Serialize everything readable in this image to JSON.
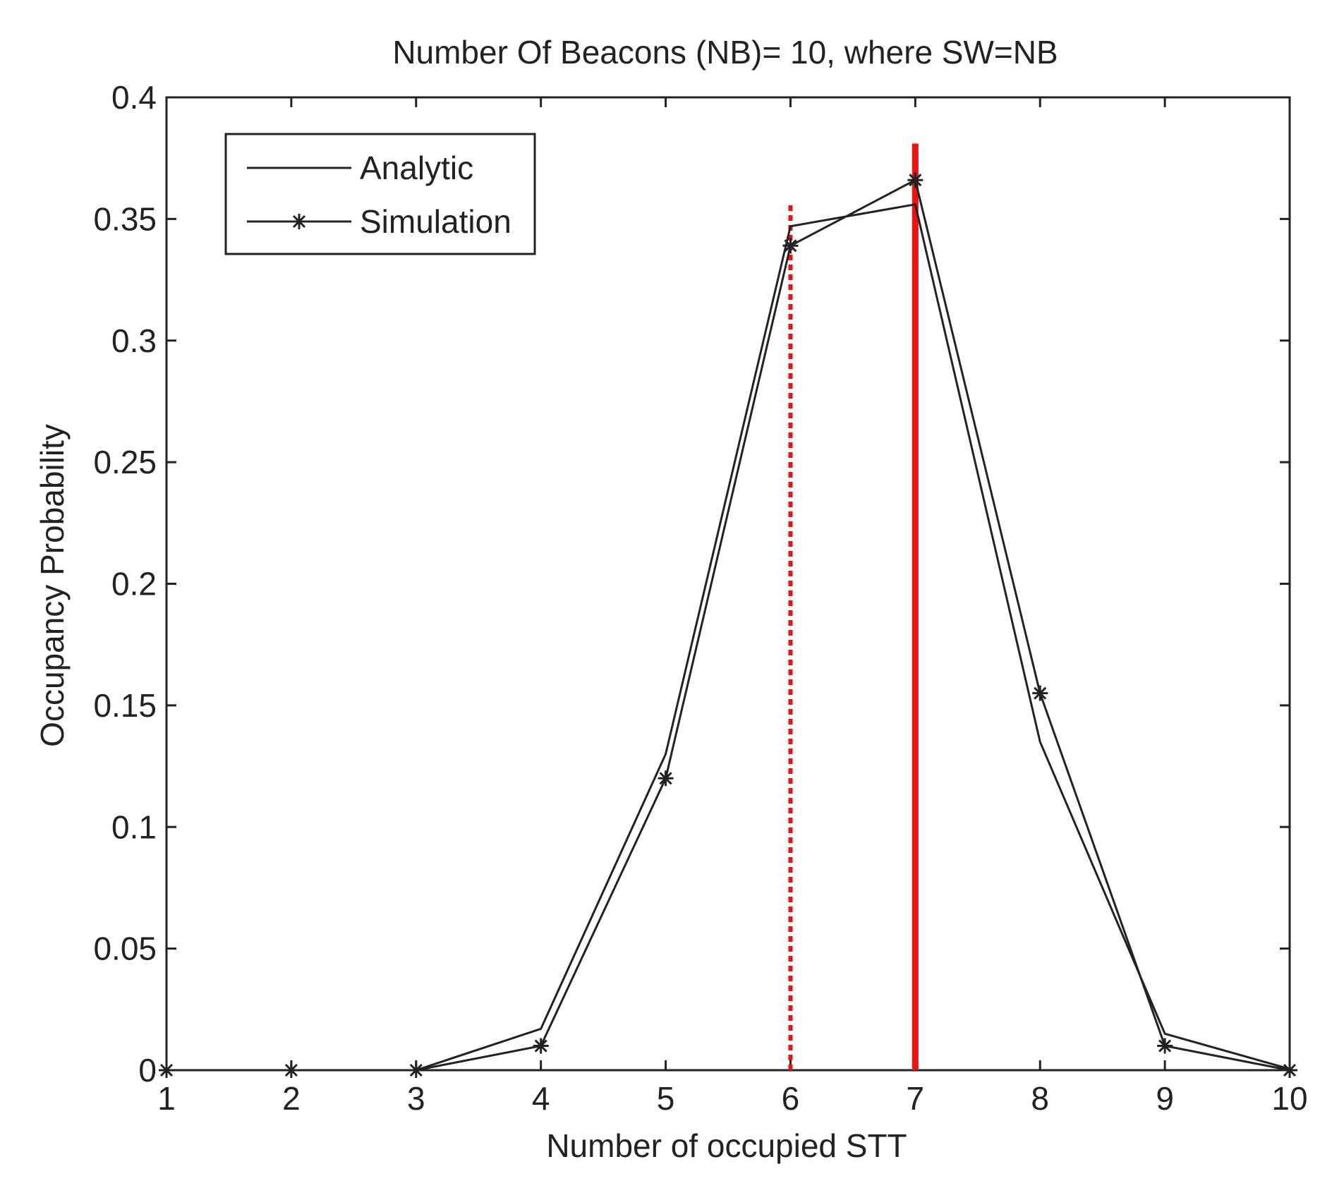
{
  "chart_data": {
    "type": "line",
    "title": "Number Of Beacons (NB)= 10, where SW=NB",
    "xlabel": "Number of occupied STT",
    "ylabel": "Occupancy Probability",
    "xlim": [
      1,
      10
    ],
    "ylim": [
      0,
      0.4
    ],
    "xticks": [
      "1",
      "2",
      "3",
      "4",
      "5",
      "6",
      "7",
      "8",
      "9",
      "10"
    ],
    "yticks": [
      "0",
      "0.05",
      "0.1",
      "0.15",
      "0.2",
      "0.25",
      "0.3",
      "0.35",
      "0.4"
    ],
    "legend_position": "top-left",
    "series": [
      {
        "name": "Analytic",
        "marker": "none",
        "color": "#222222",
        "x": [
          1,
          2,
          3,
          4,
          5,
          6,
          7,
          8,
          9,
          10
        ],
        "y": [
          0,
          0,
          0,
          0.017,
          0.13,
          0.347,
          0.356,
          0.135,
          0.015,
          0.0005
        ]
      },
      {
        "name": "Simulation",
        "marker": "star",
        "color": "#222222",
        "x": [
          1,
          2,
          3,
          4,
          5,
          6,
          7,
          8,
          9,
          10
        ],
        "y": [
          0,
          0,
          0,
          0.01,
          0.12,
          0.339,
          0.366,
          0.155,
          0.01,
          0
        ]
      }
    ],
    "reference_lines": [
      {
        "name": "dotted-red-line",
        "x": 6,
        "y_top": 0.356,
        "style": "dotted",
        "color": "#ee1111"
      },
      {
        "name": "solid-red-line",
        "x": 7,
        "y_top": 0.381,
        "style": "solid",
        "color": "#ee1111"
      }
    ]
  }
}
